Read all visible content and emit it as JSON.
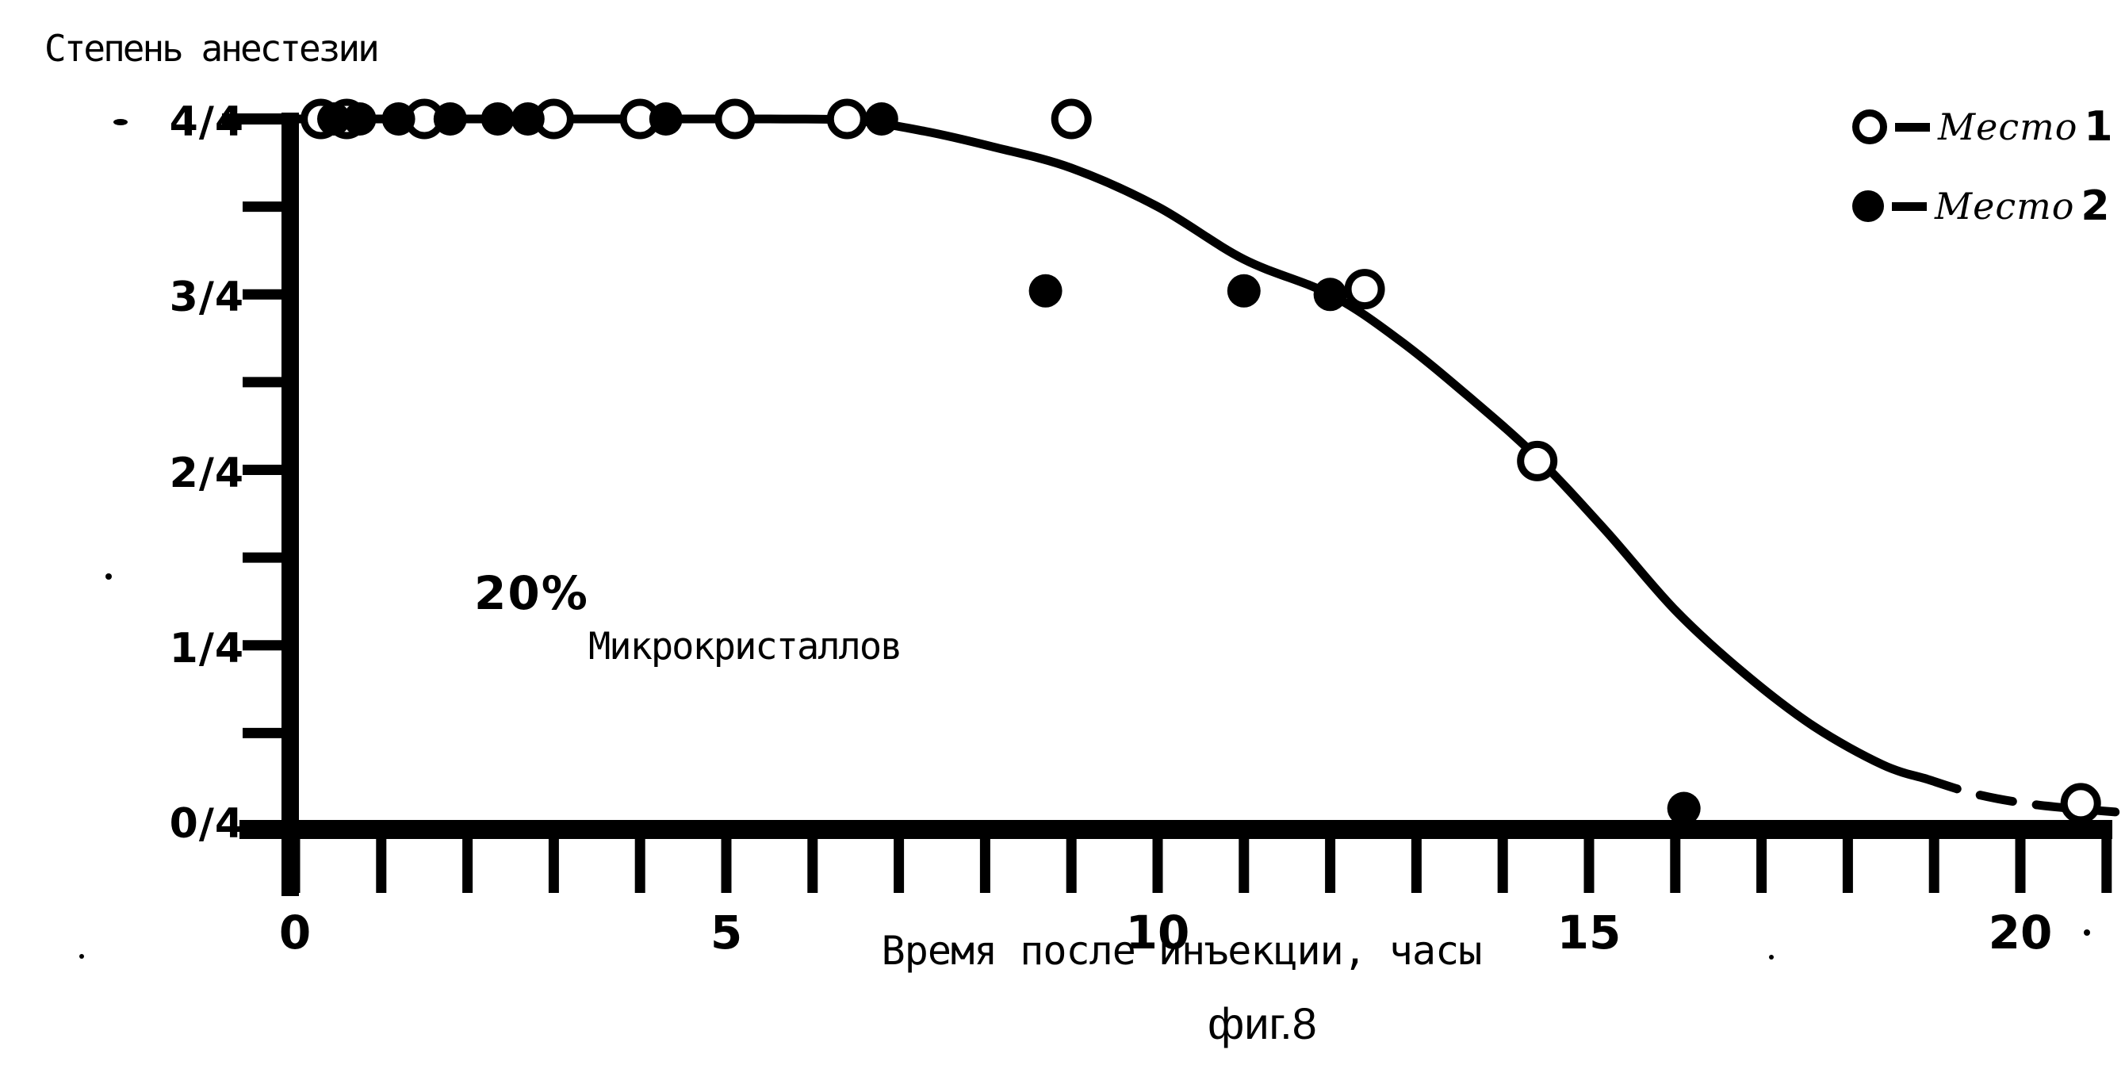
{
  "figure": {
    "caption": "фиг.8",
    "paper_color": "#ffffff",
    "ink_color": "#000000"
  },
  "chart_data": {
    "type": "scatter",
    "title": "Степень анестезии",
    "xlabel": "Время после инъекции, часы",
    "ylabel": "Степень анестезии",
    "x_range": [
      0,
      21
    ],
    "x_minor_tick_step": 1,
    "x_major_ticks": [
      {
        "h": 0,
        "label": "0"
      },
      {
        "h": 5,
        "label": "5"
      },
      {
        "h": 10,
        "label": "10"
      },
      {
        "h": 15,
        "label": "15"
      },
      {
        "h": 20,
        "label": "20"
      }
    ],
    "y_ticks": [
      {
        "q": 4,
        "label": "4/4"
      },
      {
        "q": 3,
        "label": "3/4"
      },
      {
        "q": 2,
        "label": "2/4"
      },
      {
        "q": 1,
        "label": "1/4"
      },
      {
        "q": 0,
        "label": "0/4"
      }
    ],
    "y_minor_ticks": [
      3.5,
      2.5,
      1.5,
      0.5
    ],
    "annotation": {
      "percent": "20%",
      "text": "Микрокристаллов"
    },
    "legend": [
      {
        "marker": "open-circle",
        "label": "Место",
        "number": "1"
      },
      {
        "marker": "filled-circle",
        "label": "Место",
        "number": "2"
      }
    ],
    "series": [
      {
        "name": "Место 1",
        "marker": "open-circle",
        "points": [
          [
            0.3,
            4
          ],
          [
            0.6,
            4
          ],
          [
            1.5,
            4
          ],
          [
            3.0,
            4
          ],
          [
            4.0,
            4
          ],
          [
            5.1,
            4
          ],
          [
            6.4,
            4
          ],
          [
            9.0,
            4
          ],
          [
            12.4,
            3.03
          ],
          [
            14.4,
            2.05
          ],
          [
            20.7,
            0.1
          ]
        ]
      },
      {
        "name": "Место 2",
        "marker": "filled-circle",
        "points": [
          [
            0.45,
            4
          ],
          [
            0.75,
            4
          ],
          [
            1.2,
            4
          ],
          [
            1.8,
            4
          ],
          [
            2.35,
            4
          ],
          [
            2.7,
            4
          ],
          [
            4.3,
            4
          ],
          [
            6.8,
            4
          ],
          [
            8.7,
            3.02
          ],
          [
            11.0,
            3.02
          ],
          [
            12.0,
            3.0
          ],
          [
            16.1,
            0.07
          ]
        ]
      }
    ],
    "curve": {
      "solid": [
        [
          0,
          4
        ],
        [
          3,
          4
        ],
        [
          5.5,
          4
        ],
        [
          6.5,
          3.99
        ],
        [
          7.3,
          3.93
        ],
        [
          8.1,
          3.84
        ],
        [
          9,
          3.72
        ],
        [
          10,
          3.5
        ],
        [
          11,
          3.2
        ],
        [
          12,
          3.0
        ],
        [
          12.8,
          2.74
        ],
        [
          13.6,
          2.42
        ],
        [
          14.4,
          2.07
        ],
        [
          15.2,
          1.65
        ],
        [
          16,
          1.2
        ],
        [
          16.8,
          0.84
        ],
        [
          17.6,
          0.54
        ],
        [
          18.4,
          0.32
        ],
        [
          18.9,
          0.24
        ]
      ],
      "dashed": [
        [
          18.9,
          0.24
        ],
        [
          19.5,
          0.15
        ],
        [
          20.2,
          0.09
        ],
        [
          21.1,
          0.05
        ]
      ]
    }
  }
}
